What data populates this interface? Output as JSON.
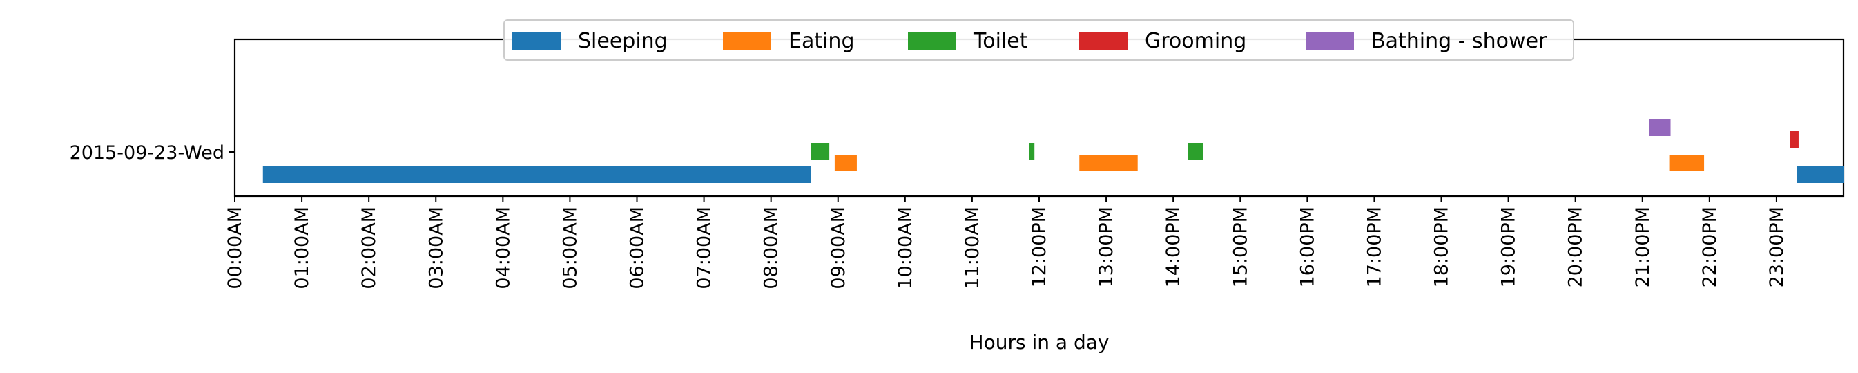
{
  "chart_data": {
    "type": "timeline",
    "xlabel": "Hours in a day",
    "ylabel": "",
    "x_unit": "hours",
    "xlim": [
      0,
      24
    ],
    "x_ticks": [
      {
        "value": 0,
        "label": "00:00AM"
      },
      {
        "value": 1,
        "label": "01:00AM"
      },
      {
        "value": 2,
        "label": "02:00AM"
      },
      {
        "value": 3,
        "label": "03:00AM"
      },
      {
        "value": 4,
        "label": "04:00AM"
      },
      {
        "value": 5,
        "label": "05:00AM"
      },
      {
        "value": 6,
        "label": "06:00AM"
      },
      {
        "value": 7,
        "label": "07:00AM"
      },
      {
        "value": 8,
        "label": "08:00AM"
      },
      {
        "value": 9,
        "label": "09:00AM"
      },
      {
        "value": 10,
        "label": "10:00AM"
      },
      {
        "value": 11,
        "label": "11:00AM"
      },
      {
        "value": 12,
        "label": "12:00PM"
      },
      {
        "value": 13,
        "label": "13:00PM"
      },
      {
        "value": 14,
        "label": "14:00PM"
      },
      {
        "value": 15,
        "label": "15:00PM"
      },
      {
        "value": 16,
        "label": "16:00PM"
      },
      {
        "value": 17,
        "label": "17:00PM"
      },
      {
        "value": 18,
        "label": "18:00PM"
      },
      {
        "value": 19,
        "label": "19:00PM"
      },
      {
        "value": 20,
        "label": "20:00PM"
      },
      {
        "value": 21,
        "label": "21:00PM"
      },
      {
        "value": 22,
        "label": "22:00PM"
      },
      {
        "value": 23,
        "label": "23:00PM"
      }
    ],
    "rows": [
      "2015-09-23-Wed"
    ],
    "legend_location": "top-center",
    "grid": false,
    "series": [
      {
        "name": "Sleeping",
        "color": "#1f77b4",
        "intervals": [
          [
            0.42,
            8.6
          ],
          [
            23.3,
            24.0
          ]
        ]
      },
      {
        "name": "Eating",
        "color": "#ff7f0e",
        "intervals": [
          [
            8.95,
            9.28
          ],
          [
            12.6,
            13.47
          ],
          [
            21.4,
            21.92
          ]
        ]
      },
      {
        "name": "Toilet",
        "color": "#2ca02c",
        "intervals": [
          [
            8.6,
            8.87
          ],
          [
            11.85,
            11.93
          ],
          [
            14.22,
            14.45
          ]
        ]
      },
      {
        "name": "Grooming",
        "color": "#d62728",
        "intervals": [
          [
            23.2,
            23.33
          ]
        ]
      },
      {
        "name": "Bathing - shower",
        "color": "#9467bd",
        "intervals": [
          [
            21.1,
            21.42
          ]
        ]
      }
    ]
  }
}
